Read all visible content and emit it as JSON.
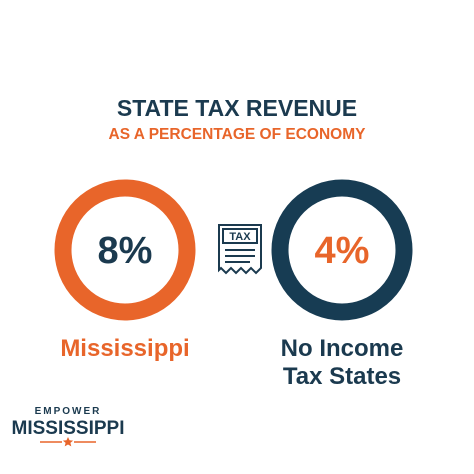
{
  "header": {
    "title": "STATE TAX REVENUE",
    "subtitle": "AS A PERCENTAGE OF ECONOMY"
  },
  "comparison": [
    {
      "value": "8%",
      "label_lines": [
        "Mississippi"
      ]
    },
    {
      "value": "4%",
      "label_lines": [
        "No Income",
        "Tax States"
      ]
    }
  ],
  "icon": {
    "label": "TAX"
  },
  "logo": {
    "top": "EMPOWER",
    "bottom": "MISSISSIPPI"
  }
}
